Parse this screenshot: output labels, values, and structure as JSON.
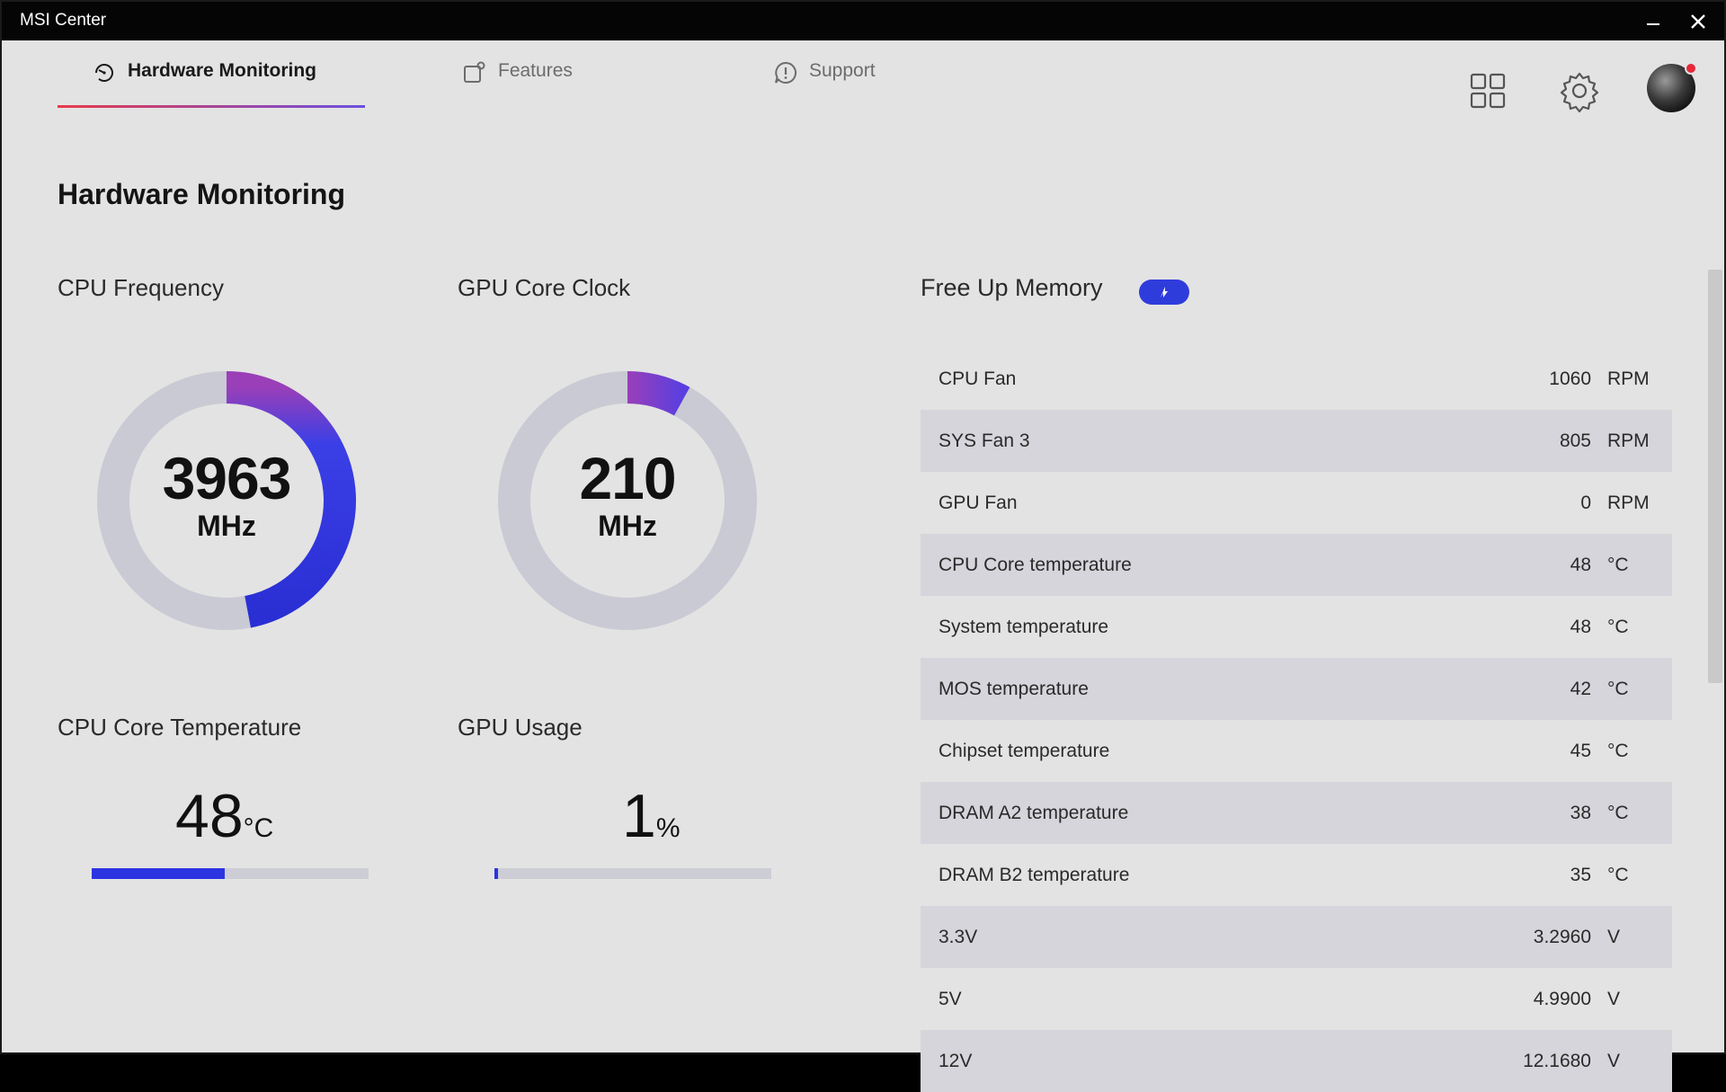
{
  "window": {
    "title": "MSI Center"
  },
  "nav": {
    "tabs": [
      {
        "label": "Hardware Monitoring",
        "icon": "gauge-icon",
        "active": true
      },
      {
        "label": "Features",
        "icon": "features-icon",
        "active": false
      },
      {
        "label": "Support",
        "icon": "support-icon",
        "active": false
      }
    ]
  },
  "page": {
    "title": "Hardware Monitoring"
  },
  "cpu_frequency": {
    "label": "CPU Frequency",
    "value": "3963",
    "unit": "MHz",
    "fraction": 0.47
  },
  "gpu_core_clock": {
    "label": "GPU Core Clock",
    "value": "210",
    "unit": "MHz",
    "fraction": 0.08
  },
  "cpu_core_temp": {
    "label": "CPU Core Temperature",
    "value": "48",
    "unit": "°C",
    "fraction": 0.48
  },
  "gpu_usage": {
    "label": "GPU Usage",
    "value": "1",
    "unit": "%",
    "fraction": 0.01
  },
  "free_up_memory": {
    "label": "Free Up Memory"
  },
  "sensors": [
    {
      "name": "CPU Fan",
      "value": "1060",
      "unit": "RPM"
    },
    {
      "name": "SYS Fan 3",
      "value": "805",
      "unit": "RPM"
    },
    {
      "name": "GPU Fan",
      "value": "0",
      "unit": "RPM"
    },
    {
      "name": "CPU Core temperature",
      "value": "48",
      "unit": "°C"
    },
    {
      "name": "System temperature",
      "value": "48",
      "unit": "°C"
    },
    {
      "name": "MOS temperature",
      "value": "42",
      "unit": "°C"
    },
    {
      "name": "Chipset temperature",
      "value": "45",
      "unit": "°C"
    },
    {
      "name": "DRAM A2 temperature",
      "value": "38",
      "unit": "°C"
    },
    {
      "name": "DRAM B2 temperature",
      "value": "35",
      "unit": "°C"
    },
    {
      "name": "3.3V",
      "value": "3.2960",
      "unit": "V"
    },
    {
      "name": "5V",
      "value": "4.9900",
      "unit": "V"
    },
    {
      "name": "12V",
      "value": "12.1680",
      "unit": "V"
    }
  ],
  "colors": {
    "accent": "#2b34e0",
    "gauge_track": "#c9cad4",
    "gradient_start": "#9a3fb8",
    "tab_underline_start": "#e83a4a"
  }
}
